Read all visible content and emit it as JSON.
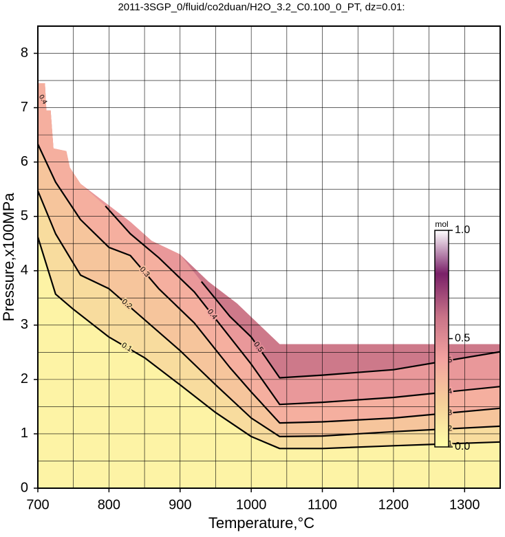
{
  "chart_data": {
    "type": "contour",
    "title": "2011-3SGP_0/fluid/co2duan/H2O_3.2_C0.100_0_PT, dz=0.01:",
    "x_label": "Temperature,°C",
    "y_label": "Pressure,x100MPa",
    "xlim": [
      700,
      1350
    ],
    "ylim": [
      0,
      8.5
    ],
    "xticks": [
      700,
      800,
      900,
      1000,
      1100,
      1200,
      1300
    ],
    "yticks": [
      0,
      1,
      2,
      3,
      4,
      5,
      6,
      7,
      8
    ],
    "xminor": [
      750,
      850,
      950,
      1050,
      1150,
      1250
    ],
    "yminor": [
      0.5,
      1.5,
      2.5,
      3.5,
      4.5,
      5.5,
      6.5,
      7.5
    ],
    "grid": true,
    "domain": {
      "x": [
        700,
        710,
        712,
        718,
        722,
        740,
        745,
        760,
        800,
        830,
        860,
        900,
        940,
        980,
        1020,
        1040,
        1050,
        1350
      ],
      "y": [
        7.45,
        7.45,
        6.95,
        6.95,
        6.25,
        6.2,
        5.9,
        5.6,
        5.2,
        4.9,
        4.55,
        4.3,
        3.8,
        3.4,
        2.9,
        2.65,
        2.65,
        2.65
      ]
    },
    "contours": [
      {
        "level": 0.1,
        "x": [
          700,
          725,
          750,
          800,
          850,
          900,
          950,
          1000,
          1040,
          1100,
          1200,
          1350
        ],
        "y": [
          4.62,
          3.57,
          3.29,
          2.78,
          2.4,
          1.9,
          1.39,
          0.95,
          0.73,
          0.73,
          0.78,
          0.85
        ]
      },
      {
        "level": 0.2,
        "x": [
          700,
          725,
          760,
          800,
          850,
          900,
          950,
          1000,
          1040,
          1100,
          1200,
          1350
        ],
        "y": [
          5.47,
          4.68,
          3.92,
          3.67,
          3.1,
          2.53,
          1.9,
          1.29,
          0.95,
          0.96,
          1.04,
          1.14
        ]
      },
      {
        "level": 0.3,
        "x": [
          700,
          725,
          760,
          800,
          830,
          870,
          920,
          970,
          1000,
          1040,
          1100,
          1200,
          1350
        ],
        "y": [
          6.33,
          5.63,
          4.94,
          4.43,
          4.28,
          3.67,
          3.04,
          2.22,
          1.77,
          1.2,
          1.22,
          1.29,
          1.47
        ]
      },
      {
        "level": 0.4,
        "x": [
          795,
          830,
          870,
          920,
          970,
          1000,
          1040,
          1100,
          1200,
          1350
        ],
        "y": [
          5.19,
          4.68,
          4.24,
          3.61,
          2.78,
          2.28,
          1.54,
          1.58,
          1.67,
          1.87
        ]
      },
      {
        "level": 0.5,
        "x": [
          930,
          970,
          1000,
          1020,
          1040,
          1100,
          1200,
          1350
        ],
        "y": [
          3.8,
          3.16,
          2.78,
          2.41,
          2.03,
          2.08,
          2.18,
          2.51
        ]
      }
    ],
    "annotations": [
      {
        "text": "0.4",
        "x": 707,
        "y": 7.15
      }
    ],
    "colorbar": {
      "label": "mol",
      "zlim": [
        0,
        1
      ],
      "zticks": [
        {
          "value": 0,
          "label": "0.0"
        },
        0.5,
        {
          "value": 1,
          "label": "1.0"
        }
      ],
      "colormap": [
        "#ffffa8",
        "#f6d09a",
        "#f4a4a0",
        "#c97488",
        "#7a2068",
        "#ffffff"
      ]
    }
  }
}
